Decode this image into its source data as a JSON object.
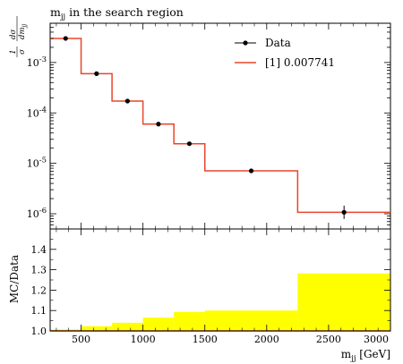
{
  "title": "mjj in the search region",
  "chart_data": [
    {
      "type": "line",
      "panel": "main",
      "title": "mjj in the search region",
      "ylabel": "1/σ dσ/dmjj",
      "y_scale": "log",
      "xlim": [
        250,
        3000
      ],
      "ylim": [
        5e-07,
        0.006
      ],
      "yticks": [
        {
          "value": 1e-06,
          "label": "10^-6"
        },
        {
          "value": 1e-05,
          "label": "10^-5"
        },
        {
          "value": 0.0001,
          "label": "10^-4"
        },
        {
          "value": 0.001,
          "label": "10^-3"
        }
      ],
      "legend_position": "top-right",
      "legend": [
        "Data",
        "[1] 0.007741"
      ],
      "bin_edges": [
        250,
        500,
        750,
        1000,
        1250,
        1500,
        2250,
        3000
      ],
      "series": [
        {
          "name": "Data",
          "kind": "points",
          "color": "#000000",
          "x": [
            375,
            625,
            875,
            1125,
            1375,
            1875,
            2625
          ],
          "y": [
            0.003,
            0.0006,
            0.000172,
            6e-05,
            2.45e-05,
            7.1e-06,
            1.07e-06
          ],
          "err_up": [
            3e-05,
            6e-06,
            2.5e-06,
            1e-06,
            4e-07,
            1.2e-07,
            3.8e-07
          ],
          "err_down": [
            3e-05,
            6e-06,
            2.5e-06,
            1e-06,
            4e-07,
            1.2e-07,
            2.8e-07
          ]
        },
        {
          "name": "[1] 0.007741",
          "kind": "step",
          "color": "#e8462a",
          "values": [
            0.003,
            0.0006,
            0.000172,
            6e-05,
            2.45e-05,
            7.1e-06,
            1.07e-06
          ]
        }
      ]
    },
    {
      "type": "area",
      "panel": "ratio",
      "ylabel": "MC/Data",
      "xlabel": "mjj [GeV]",
      "xlim": [
        250,
        3000
      ],
      "ylim": [
        1.0,
        1.5
      ],
      "xticks": [
        500,
        1000,
        1500,
        2000,
        2500,
        3000
      ],
      "yticks": [
        "1.0",
        "1.1",
        "1.2",
        "1.3",
        "1.4"
      ],
      "bin_edges": [
        250,
        500,
        750,
        1000,
        1250,
        1500,
        2250,
        3000
      ],
      "band_low": [
        1.0,
        1.0,
        1.0,
        1.0,
        1.0,
        1.0,
        1.0
      ],
      "band_high": [
        1.007,
        1.023,
        1.04,
        1.065,
        1.093,
        1.1,
        1.282
      ],
      "band_color": "#ffff00",
      "reference_color": "#e8462a"
    }
  ]
}
